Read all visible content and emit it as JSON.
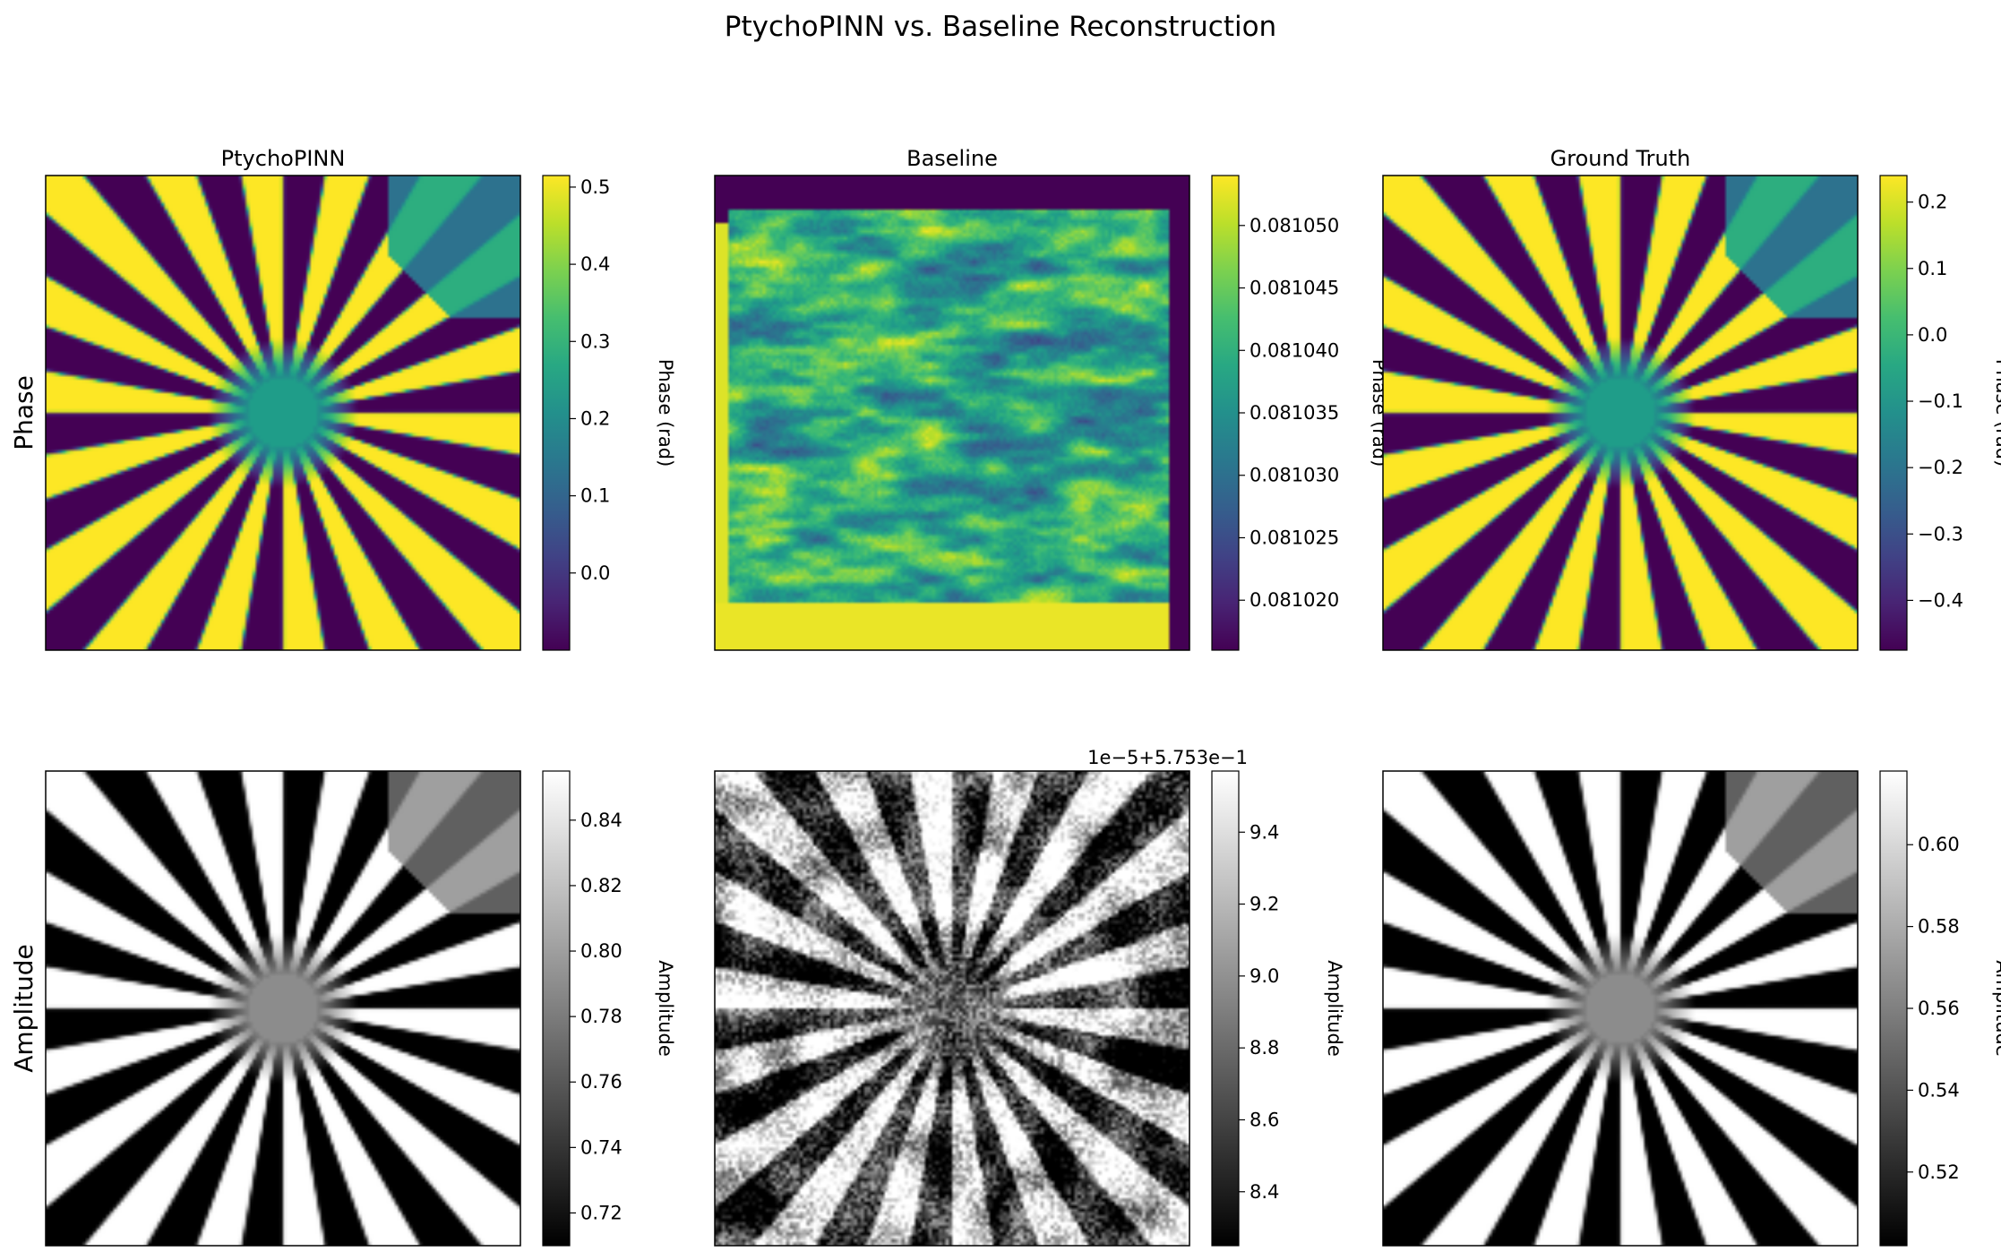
{
  "chart_data": {
    "type": "heatmap",
    "title": "PtychoPINN vs. Baseline Reconstruction",
    "columns": [
      "PtychoPINN",
      "Baseline",
      "Ground Truth"
    ],
    "rows": [
      "Phase",
      "Amplitude"
    ],
    "panels": [
      {
        "row": "Phase",
        "column": "PtychoPINN",
        "title": "PtychoPINN",
        "colormap": "viridis",
        "colorbar_label": "Phase (rad)",
        "clim": [
          -0.1,
          0.515
        ],
        "colorbar_ticks": [
          0.0,
          0.1,
          0.2,
          0.3,
          0.4,
          0.5
        ],
        "colorbar_tick_labels": [
          "0.0",
          "0.1",
          "0.2",
          "0.3",
          "0.4",
          "0.5"
        ],
        "colorbar_offset_text": "",
        "pattern": "siemens-star"
      },
      {
        "row": "Phase",
        "column": "Baseline",
        "title": "Baseline",
        "colormap": "viridis",
        "colorbar_label": "Phase (rad)",
        "clim": [
          0.081016,
          0.081054
        ],
        "colorbar_ticks": [
          0.08102,
          0.081025,
          0.08103,
          0.081035,
          0.08104,
          0.081045,
          0.08105
        ],
        "colorbar_tick_labels": [
          "0.081020",
          "0.081025",
          "0.081030",
          "0.081035",
          "0.081040",
          "0.081045",
          "0.081050"
        ],
        "colorbar_offset_text": "",
        "pattern": "noise"
      },
      {
        "row": "Phase",
        "column": "Ground Truth",
        "title": "Ground Truth",
        "colormap": "viridis",
        "colorbar_label": "Phase (rad)",
        "clim": [
          -0.475,
          0.24
        ],
        "colorbar_ticks": [
          0.2,
          0.1,
          0.0,
          -0.1,
          -0.2,
          -0.3,
          -0.4
        ],
        "colorbar_tick_labels": [
          "0.2",
          "0.1",
          "0.0",
          "−0.1",
          "−0.2",
          "−0.3",
          "−0.4"
        ],
        "colorbar_offset_text": "",
        "pattern": "siemens-star"
      },
      {
        "row": "Amplitude",
        "column": "PtychoPINN",
        "title": "",
        "colormap": "gray",
        "colorbar_label": "Amplitude",
        "clim": [
          0.71,
          0.855
        ],
        "colorbar_ticks": [
          0.72,
          0.74,
          0.76,
          0.78,
          0.8,
          0.82,
          0.84
        ],
        "colorbar_tick_labels": [
          "0.72",
          "0.74",
          "0.76",
          "0.78",
          "0.80",
          "0.82",
          "0.84"
        ],
        "colorbar_offset_text": "",
        "pattern": "siemens-star"
      },
      {
        "row": "Amplitude",
        "column": "Baseline",
        "title": "",
        "colormap": "gray",
        "colorbar_label": "Amplitude",
        "clim": [
          8.25,
          9.57
        ],
        "colorbar_ticks": [
          8.4,
          8.6,
          8.8,
          9.0,
          9.2,
          9.4
        ],
        "colorbar_tick_labels": [
          "8.4",
          "8.6",
          "8.8",
          "9.0",
          "9.2",
          "9.4"
        ],
        "colorbar_offset_text": "1e−5+5.753e−1",
        "pattern": "noisy-star"
      },
      {
        "row": "Amplitude",
        "column": "Ground Truth",
        "title": "",
        "colormap": "gray",
        "colorbar_label": "Amplitude",
        "clim": [
          0.502,
          0.618
        ],
        "colorbar_ticks": [
          0.52,
          0.54,
          0.56,
          0.58,
          0.6
        ],
        "colorbar_tick_labels": [
          "0.52",
          "0.54",
          "0.56",
          "0.58",
          "0.60"
        ],
        "colorbar_offset_text": "",
        "pattern": "siemens-star"
      }
    ]
  },
  "colors": {
    "viridis_low": "#440154",
    "viridis_mid": "#21918c",
    "viridis_high": "#fde725",
    "gray_low": "#000000",
    "gray_high": "#ffffff"
  }
}
